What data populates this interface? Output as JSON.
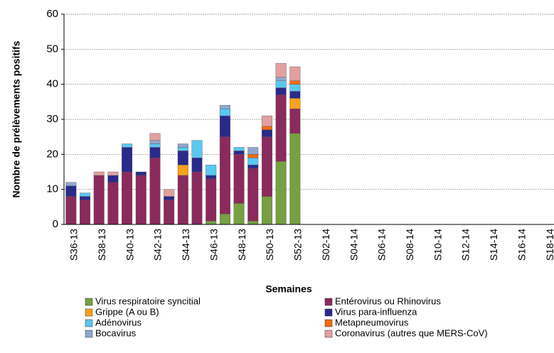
{
  "chart_data": {
    "type": "stacked-bar",
    "x_label": "Semaines",
    "y_label": "Nombre de prélèvements positifs",
    "categories": [
      "S36-13",
      null,
      "S38-13",
      null,
      "S40-13",
      null,
      "S42-13",
      null,
      "S44-13",
      null,
      "S46-13",
      null,
      "S48-13",
      null,
      "S50-13",
      null,
      "S52-13",
      null,
      "S02-14",
      null,
      "S04-14",
      null,
      "S06-14",
      null,
      "S08-14",
      null,
      "S10-14",
      null,
      "S12-14",
      null,
      "S14-14",
      null,
      "S16-14",
      null,
      "S18-14"
    ],
    "series": [
      {
        "name": "Virus respiratoire syncitial",
        "color": "#77a042",
        "values": [
          0,
          0,
          0,
          0,
          0,
          0,
          0,
          0,
          0,
          0,
          1,
          3,
          6,
          1,
          8,
          18,
          26,
          null,
          null,
          null,
          null,
          null,
          null,
          null,
          null,
          null,
          null,
          null,
          null,
          null,
          null,
          null,
          null,
          null,
          null
        ]
      },
      {
        "name": "Entérovirus ou Rhinovirus",
        "color": "#8b2a5c",
        "values": [
          8,
          7,
          14,
          12,
          15,
          14,
          19,
          7,
          14,
          15,
          12,
          22,
          14,
          15,
          17,
          19,
          7,
          null,
          null,
          null,
          null,
          null,
          null,
          null,
          null,
          null,
          null,
          null,
          null,
          null,
          null,
          null,
          null,
          null,
          null
        ]
      },
      {
        "name": "Grippe (A ou B)",
        "color": "#f7a21b",
        "values": [
          0,
          0,
          0,
          0,
          0,
          0,
          0,
          0,
          3,
          0,
          0,
          0,
          0,
          0,
          0,
          0,
          3,
          null,
          null,
          null,
          null,
          null,
          null,
          null,
          null,
          null,
          null,
          null,
          null,
          null,
          null,
          null,
          null,
          null,
          null
        ]
      },
      {
        "name": "Virus para-influenza",
        "color": "#2a2a8a",
        "values": [
          3,
          1,
          0,
          2,
          7,
          1,
          3,
          1,
          4,
          4,
          1,
          6,
          1,
          1,
          2,
          2,
          2,
          null,
          null,
          null,
          null,
          null,
          null,
          null,
          null,
          null,
          null,
          null,
          null,
          null,
          null,
          null,
          null,
          null,
          null
        ]
      },
      {
        "name": "Adénovirus",
        "color": "#5bc8f0",
        "values": [
          0,
          1,
          0,
          0,
          1,
          0,
          1,
          0,
          1,
          5,
          3,
          2,
          1,
          2,
          0,
          2,
          2,
          null,
          null,
          null,
          null,
          null,
          null,
          null,
          null,
          null,
          null,
          null,
          null,
          null,
          null,
          null,
          null,
          null,
          null
        ]
      },
      {
        "name": "Metapneumovirus",
        "color": "#f26b0f",
        "values": [
          0,
          0,
          0,
          0,
          0,
          0,
          0,
          0,
          0,
          0,
          0,
          0,
          0,
          1,
          1,
          0,
          1,
          null,
          null,
          null,
          null,
          null,
          null,
          null,
          null,
          null,
          null,
          null,
          null,
          null,
          null,
          null,
          null,
          null,
          null
        ]
      },
      {
        "name": "Bocavirus",
        "color": "#8fa7cf",
        "values": [
          1,
          0,
          0,
          0,
          0,
          0,
          1,
          0,
          1,
          0,
          0,
          1,
          0,
          2,
          0,
          1,
          0,
          null,
          null,
          null,
          null,
          null,
          null,
          null,
          null,
          null,
          null,
          null,
          null,
          null,
          null,
          null,
          null,
          null,
          null
        ]
      },
      {
        "name": "Coronavirus (autres que MERS-CoV)",
        "color": "#e2a0a0",
        "values": [
          0,
          0,
          1,
          1,
          0,
          0,
          2,
          2,
          0,
          0,
          0,
          0,
          0,
          0,
          3,
          4,
          4,
          null,
          null,
          null,
          null,
          null,
          null,
          null,
          null,
          null,
          null,
          null,
          null,
          null,
          null,
          null,
          null,
          null,
          null
        ]
      }
    ],
    "ylim": [
      0,
      60
    ],
    "yticks": [
      0,
      10,
      20,
      30,
      40,
      50,
      60
    ],
    "grid": true
  }
}
